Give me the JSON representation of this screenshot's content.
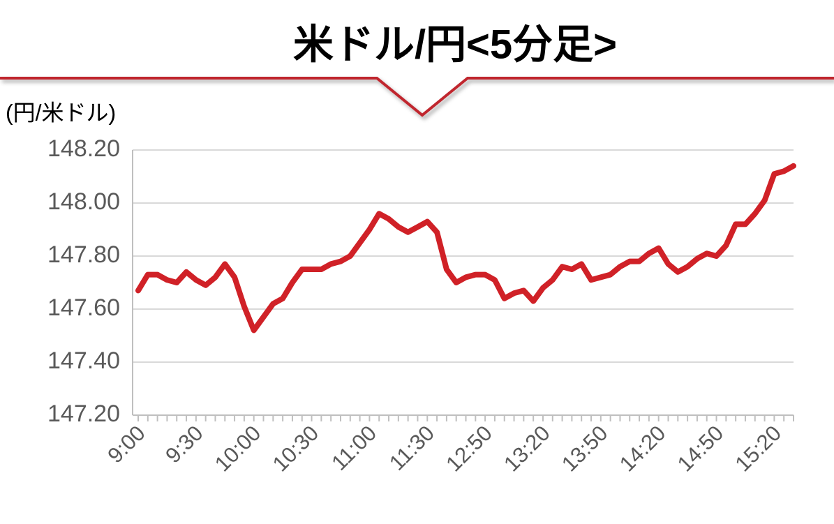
{
  "chart_data": {
    "type": "line",
    "title": "米ドル/円<5分足>",
    "y_label": "(円/米ドル)",
    "categories": [
      "9:00",
      null,
      null,
      null,
      null,
      null,
      "9:30",
      null,
      null,
      null,
      null,
      null,
      "10:00",
      null,
      null,
      null,
      null,
      null,
      "10:30",
      null,
      null,
      null,
      null,
      null,
      "11:00",
      null,
      null,
      null,
      null,
      null,
      "11:30",
      null,
      null,
      null,
      null,
      null,
      "12:50",
      null,
      null,
      null,
      null,
      null,
      "13:20",
      null,
      null,
      null,
      null,
      null,
      "13:50",
      null,
      null,
      null,
      null,
      null,
      "14:20",
      null,
      null,
      null,
      null,
      null,
      "14:50",
      null,
      null,
      null,
      null,
      null,
      "15:20",
      null,
      null
    ],
    "series": [
      {
        "name": "米ドル/円",
        "color": "#d02127",
        "values": [
          147.67,
          147.73,
          147.73,
          147.71,
          147.7,
          147.74,
          147.71,
          147.69,
          147.72,
          147.77,
          147.72,
          147.61,
          147.52,
          147.57,
          147.62,
          147.64,
          147.7,
          147.75,
          147.75,
          147.75,
          147.77,
          147.78,
          147.8,
          147.85,
          147.9,
          147.96,
          147.94,
          147.91,
          147.89,
          147.91,
          147.93,
          147.89,
          147.75,
          147.7,
          147.72,
          147.73,
          147.73,
          147.71,
          147.64,
          147.66,
          147.67,
          147.63,
          147.68,
          147.71,
          147.76,
          147.75,
          147.77,
          147.71,
          147.72,
          147.73,
          147.76,
          147.78,
          147.78,
          147.81,
          147.83,
          147.77,
          147.74,
          147.76,
          147.79,
          147.81,
          147.8,
          147.84,
          147.92,
          147.92,
          147.96,
          148.01,
          148.11,
          148.12,
          148.14
        ]
      }
    ],
    "ylim": [
      147.2,
      148.2
    ],
    "yticks": [
      {
        "value": 147.2,
        "label": "147.20"
      },
      {
        "value": 147.4,
        "label": "147.40"
      },
      {
        "value": 147.6,
        "label": "147.60"
      },
      {
        "value": 147.8,
        "label": "147.80"
      },
      {
        "value": 148.0,
        "label": "148.00"
      },
      {
        "value": 148.2,
        "label": "148.20"
      }
    ],
    "grid": true
  }
}
